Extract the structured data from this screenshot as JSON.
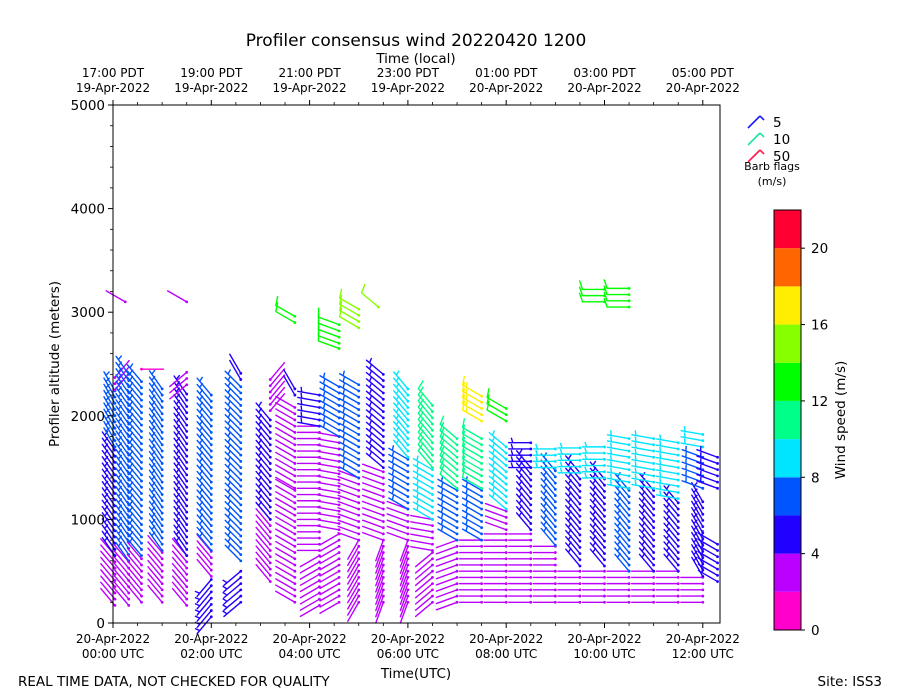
{
  "chart_data": {
    "type": "wind-barb",
    "title": "Profiler consensus wind 20220420 1200",
    "top_axis_label": "Time (local)",
    "xlabel": "Time(UTC)",
    "ylabel": "Profiler altitude (meters)",
    "ylim": [
      0,
      5000
    ],
    "y_ticks": [
      "0",
      "1000",
      "2000",
      "3000",
      "4000",
      "5000"
    ],
    "xlim_hours": [
      0,
      12.35
    ],
    "x_ticks_utc": [
      {
        "hour": 0,
        "line1": "20-Apr-2022",
        "line2": "00:00 UTC"
      },
      {
        "hour": 2,
        "line1": "20-Apr-2022",
        "line2": "02:00 UTC"
      },
      {
        "hour": 4,
        "line1": "20-Apr-2022",
        "line2": "04:00 UTC"
      },
      {
        "hour": 6,
        "line1": "20-Apr-2022",
        "line2": "06:00 UTC"
      },
      {
        "hour": 8,
        "line1": "20-Apr-2022",
        "line2": "08:00 UTC"
      },
      {
        "hour": 10,
        "line1": "20-Apr-2022",
        "line2": "10:00 UTC"
      },
      {
        "hour": 12,
        "line1": "20-Apr-2022",
        "line2": "12:00 UTC"
      }
    ],
    "x_ticks_local": [
      {
        "hour": 0,
        "line1": "17:00 PDT",
        "line2": "19-Apr-2022"
      },
      {
        "hour": 2,
        "line1": "19:00 PDT",
        "line2": "19-Apr-2022"
      },
      {
        "hour": 4,
        "line1": "21:00 PDT",
        "line2": "19-Apr-2022"
      },
      {
        "hour": 6,
        "line1": "23:00 PDT",
        "line2": "19-Apr-2022"
      },
      {
        "hour": 8,
        "line1": "01:00 PDT",
        "line2": "20-Apr-2022"
      },
      {
        "hour": 10,
        "line1": "03:00 PDT",
        "line2": "20-Apr-2022"
      },
      {
        "hour": 12,
        "line1": "05:00 PDT",
        "line2": "20-Apr-2022"
      }
    ],
    "barb_legend": {
      "items": [
        {
          "label": "5",
          "color": "#1a1aff"
        },
        {
          "label": "10",
          "color": "#19e6a0"
        },
        {
          "label": "50",
          "color": "#ff1a4d"
        }
      ],
      "title_line1": "Barb flags",
      "title_line2": "(m/s)"
    },
    "colorbar": {
      "label": "Wind speed (m/s)",
      "range": [
        0,
        22
      ],
      "ticks": [
        "0",
        "4",
        "8",
        "12",
        "16",
        "20"
      ],
      "bands": [
        {
          "from": 0,
          "to": 2,
          "color": "#ff00cc"
        },
        {
          "from": 2,
          "to": 4,
          "color": "#bb00ff"
        },
        {
          "from": 4,
          "to": 6,
          "color": "#2200ff"
        },
        {
          "from": 6,
          "to": 8,
          "color": "#0055ff"
        },
        {
          "from": 8,
          "to": 10,
          "color": "#00e5ff"
        },
        {
          "from": 10,
          "to": 12,
          "color": "#00ff88"
        },
        {
          "from": 12,
          "to": 14,
          "color": "#00ff00"
        },
        {
          "from": 14,
          "to": 16,
          "color": "#88ff00"
        },
        {
          "from": 16,
          "to": 18,
          "color": "#ffee00"
        },
        {
          "from": 18,
          "to": 20,
          "color": "#ff6600"
        },
        {
          "from": 20,
          "to": 22,
          "color": "#ff0033"
        }
      ]
    },
    "profiles": [
      {
        "hour": 0.04,
        "segments": [
          {
            "alt_from": 170,
            "alt_to": 650,
            "speed": 2,
            "dir": 320
          },
          {
            "alt_from": 650,
            "alt_to": 1700,
            "speed": 5,
            "dir": 325
          },
          {
            "alt_from": 1700,
            "alt_to": 2250,
            "speed": 6,
            "dir": 330
          },
          {
            "alt_from": 2250,
            "alt_to": 2400,
            "speed": 2,
            "dir": 40
          }
        ]
      },
      {
        "hour": 0.32,
        "segments": [
          {
            "alt_from": 170,
            "alt_to": 600,
            "speed": 2,
            "dir": 320
          },
          {
            "alt_from": 600,
            "alt_to": 2400,
            "speed": 6,
            "dir": 325
          }
        ]
      },
      {
        "hour": 0.58,
        "segments": [
          {
            "alt_from": 200,
            "alt_to": 650,
            "speed": 2,
            "dir": 320
          },
          {
            "alt_from": 650,
            "alt_to": 2350,
            "speed": 6,
            "dir": 320
          },
          {
            "alt_from": 2450,
            "alt_to": 2500,
            "speed": 1,
            "dir": 90
          }
        ]
      },
      {
        "hour": 1.0,
        "segments": [
          {
            "alt_from": 200,
            "alt_to": 700,
            "speed": 2,
            "dir": 320
          },
          {
            "alt_from": 700,
            "alt_to": 2300,
            "speed": 7,
            "dir": 325
          }
        ]
      },
      {
        "hour": 1.5,
        "segments": [
          {
            "alt_from": 170,
            "alt_to": 650,
            "speed": 2,
            "dir": 320
          },
          {
            "alt_from": 650,
            "alt_to": 2250,
            "speed": 5,
            "dir": 325
          },
          {
            "alt_from": 2300,
            "alt_to": 2450,
            "speed": 2,
            "dir": 230
          }
        ]
      },
      {
        "hour": 2.0,
        "segments": [
          {
            "alt_from": 60,
            "alt_to": 450,
            "speed": 5,
            "dir": 220
          },
          {
            "alt_from": 450,
            "alt_to": 700,
            "speed": 2,
            "dir": 320
          },
          {
            "alt_from": 700,
            "alt_to": 2200,
            "speed": 6,
            "dir": 320
          }
        ]
      },
      {
        "hour": 2.6,
        "segments": [
          {
            "alt_from": 200,
            "alt_to": 550,
            "speed": 5,
            "dir": 230
          },
          {
            "alt_from": 600,
            "alt_to": 2300,
            "speed": 6,
            "dir": 315
          },
          {
            "alt_from": 2350,
            "alt_to": 2450,
            "speed": 4,
            "dir": 330
          }
        ]
      },
      {
        "hour": 3.2,
        "segments": [
          {
            "alt_from": 400,
            "alt_to": 1000,
            "speed": 2,
            "dir": 320
          },
          {
            "alt_from": 1000,
            "alt_to": 2000,
            "speed": 5,
            "dir": 320
          },
          {
            "alt_from": 2050,
            "alt_to": 2350,
            "speed": 2,
            "dir": 40
          }
        ]
      },
      {
        "hour": 3.7,
        "segments": [
          {
            "alt_from": 200,
            "alt_to": 1300,
            "speed": 2,
            "dir": 300
          },
          {
            "alt_from": 1300,
            "alt_to": 2100,
            "speed": 3,
            "dir": 300
          },
          {
            "alt_from": 2200,
            "alt_to": 2300,
            "speed": 4,
            "dir": 330
          },
          {
            "alt_from": 2900,
            "alt_to": 3000,
            "speed": 12,
            "dir": 300
          }
        ]
      },
      {
        "hour": 4.2,
        "segments": [
          {
            "alt_from": 170,
            "alt_to": 700,
            "speed": 3,
            "dir": 240
          },
          {
            "alt_from": 700,
            "alt_to": 1900,
            "speed": 2,
            "dir": 270
          },
          {
            "alt_from": 1900,
            "alt_to": 2200,
            "speed": 5,
            "dir": 280
          }
        ]
      },
      {
        "hour": 4.6,
        "segments": [
          {
            "alt_from": 200,
            "alt_to": 900,
            "speed": 3,
            "dir": 240
          },
          {
            "alt_from": 900,
            "alt_to": 1800,
            "speed": 2,
            "dir": 280
          },
          {
            "alt_from": 1800,
            "alt_to": 2300,
            "speed": 6,
            "dir": 300
          },
          {
            "alt_from": 2700,
            "alt_to": 2900,
            "speed": 13,
            "dir": 290
          }
        ]
      },
      {
        "hour": 5.0,
        "segments": [
          {
            "alt_from": 200,
            "alt_to": 800,
            "speed": 3,
            "dir": 210
          },
          {
            "alt_from": 800,
            "alt_to": 1400,
            "speed": 2,
            "dir": 290
          },
          {
            "alt_from": 1400,
            "alt_to": 2300,
            "speed": 6,
            "dir": 300
          },
          {
            "alt_from": 2850,
            "alt_to": 3050,
            "speed": 14,
            "dir": 300
          }
        ]
      },
      {
        "hour": 5.5,
        "segments": [
          {
            "alt_from": 200,
            "alt_to": 800,
            "speed": 3,
            "dir": 200
          },
          {
            "alt_from": 800,
            "alt_to": 1500,
            "speed": 2,
            "dir": 290
          },
          {
            "alt_from": 1500,
            "alt_to": 2400,
            "speed": 5,
            "dir": 310
          }
        ]
      },
      {
        "hour": 6.0,
        "segments": [
          {
            "alt_from": 200,
            "alt_to": 800,
            "speed": 3,
            "dir": 200
          },
          {
            "alt_from": 800,
            "alt_to": 1100,
            "speed": 2,
            "dir": 290
          },
          {
            "alt_from": 1100,
            "alt_to": 1600,
            "speed": 7,
            "dir": 300
          },
          {
            "alt_from": 1600,
            "alt_to": 2300,
            "speed": 8,
            "dir": 320
          }
        ]
      },
      {
        "hour": 6.5,
        "segments": [
          {
            "alt_from": 200,
            "alt_to": 700,
            "speed": 3,
            "dir": 230
          },
          {
            "alt_from": 700,
            "alt_to": 1000,
            "speed": 2,
            "dir": 280
          },
          {
            "alt_from": 1000,
            "alt_to": 1500,
            "speed": 9,
            "dir": 300
          },
          {
            "alt_from": 1500,
            "alt_to": 2100,
            "speed": 10,
            "dir": 320
          }
        ]
      },
      {
        "hour": 7.0,
        "segments": [
          {
            "alt_from": 200,
            "alt_to": 800,
            "speed": 2,
            "dir": 250
          },
          {
            "alt_from": 800,
            "alt_to": 1300,
            "speed": 7,
            "dir": 300
          },
          {
            "alt_from": 1300,
            "alt_to": 1800,
            "speed": 11,
            "dir": 310
          }
        ]
      },
      {
        "hour": 7.5,
        "segments": [
          {
            "alt_from": 200,
            "alt_to": 800,
            "speed": 2,
            "dir": 270
          },
          {
            "alt_from": 800,
            "alt_to": 1300,
            "speed": 6,
            "dir": 300
          },
          {
            "alt_from": 1300,
            "alt_to": 1800,
            "speed": 10,
            "dir": 300
          },
          {
            "alt_from": 1950,
            "alt_to": 2200,
            "speed": 17,
            "dir": 300
          }
        ]
      },
      {
        "hour": 8.0,
        "segments": [
          {
            "alt_from": 200,
            "alt_to": 900,
            "speed": 2,
            "dir": 270
          },
          {
            "alt_from": 900,
            "alt_to": 1100,
            "speed": 3,
            "dir": 290
          },
          {
            "alt_from": 1100,
            "alt_to": 1750,
            "speed": 9,
            "dir": 310
          },
          {
            "alt_from": 1950,
            "alt_to": 2100,
            "speed": 13,
            "dir": 300
          }
        ]
      },
      {
        "hour": 8.5,
        "segments": [
          {
            "alt_from": 200,
            "alt_to": 900,
            "speed": 2,
            "dir": 270
          },
          {
            "alt_from": 900,
            "alt_to": 1500,
            "speed": 5,
            "dir": 320
          },
          {
            "alt_from": 1500,
            "alt_to": 1750,
            "speed": 5,
            "dir": 270
          }
        ]
      },
      {
        "hour": 9.0,
        "segments": [
          {
            "alt_from": 200,
            "alt_to": 750,
            "speed": 2,
            "dir": 270
          },
          {
            "alt_from": 750,
            "alt_to": 1500,
            "speed": 6,
            "dir": 320
          },
          {
            "alt_from": 1500,
            "alt_to": 1720,
            "speed": 9,
            "dir": 270
          }
        ]
      },
      {
        "hour": 9.5,
        "segments": [
          {
            "alt_from": 200,
            "alt_to": 550,
            "speed": 2,
            "dir": 270
          },
          {
            "alt_from": 550,
            "alt_to": 1450,
            "speed": 5,
            "dir": 320
          },
          {
            "alt_from": 1450,
            "alt_to": 1720,
            "speed": 9,
            "dir": 270
          }
        ]
      },
      {
        "hour": 10.0,
        "segments": [
          {
            "alt_from": 200,
            "alt_to": 550,
            "speed": 2,
            "dir": 270
          },
          {
            "alt_from": 550,
            "alt_to": 1400,
            "speed": 5,
            "dir": 320
          },
          {
            "alt_from": 1400,
            "alt_to": 1700,
            "speed": 9,
            "dir": 270
          },
          {
            "alt_from": 3100,
            "alt_to": 3250,
            "speed": 13,
            "dir": 270
          }
        ]
      },
      {
        "hour": 10.5,
        "segments": [
          {
            "alt_from": 200,
            "alt_to": 500,
            "speed": 2,
            "dir": 270
          },
          {
            "alt_from": 500,
            "alt_to": 1300,
            "speed": 6,
            "dir": 320
          },
          {
            "alt_from": 1300,
            "alt_to": 1800,
            "speed": 9,
            "dir": 280
          },
          {
            "alt_from": 3050,
            "alt_to": 3250,
            "speed": 13,
            "dir": 270
          }
        ]
      },
      {
        "hour": 11.0,
        "segments": [
          {
            "alt_from": 200,
            "alt_to": 500,
            "speed": 2,
            "dir": 270
          },
          {
            "alt_from": 500,
            "alt_to": 1300,
            "speed": 5,
            "dir": 320
          },
          {
            "alt_from": 1300,
            "alt_to": 1800,
            "speed": 9,
            "dir": 280
          }
        ]
      },
      {
        "hour": 11.5,
        "segments": [
          {
            "alt_from": 200,
            "alt_to": 500,
            "speed": 2,
            "dir": 270
          },
          {
            "alt_from": 500,
            "alt_to": 1200,
            "speed": 5,
            "dir": 320
          },
          {
            "alt_from": 1200,
            "alt_to": 1750,
            "speed": 9,
            "dir": 280
          }
        ]
      },
      {
        "hour": 12.0,
        "segments": [
          {
            "alt_from": 200,
            "alt_to": 450,
            "speed": 2,
            "dir": 270
          },
          {
            "alt_from": 450,
            "alt_to": 1200,
            "speed": 5,
            "dir": 330
          },
          {
            "alt_from": 1300,
            "alt_to": 1600,
            "speed": 6,
            "dir": 290
          },
          {
            "alt_from": 1700,
            "alt_to": 1850,
            "speed": 9,
            "dir": 280
          }
        ]
      },
      {
        "hour": 12.3,
        "segments": [
          {
            "alt_from": 400,
            "alt_to": 800,
            "speed": 5,
            "dir": 300
          },
          {
            "alt_from": 1300,
            "alt_to": 1600,
            "speed": 5,
            "dir": 290
          }
        ]
      }
    ],
    "isolated_barbs": [
      {
        "hour": 0.25,
        "alt": 3100,
        "speed": 2,
        "dir": 300
      },
      {
        "hour": 1.5,
        "alt": 3100,
        "speed": 2,
        "dir": 300
      },
      {
        "hour": 4.6,
        "alt": 2650,
        "speed": 12,
        "dir": 290
      },
      {
        "hour": 5.4,
        "alt": 3050,
        "speed": 14,
        "dir": 310
      }
    ]
  },
  "footer": {
    "left_note": "REAL TIME DATA, NOT CHECKED FOR QUALITY",
    "site": "Site: ISS3"
  }
}
